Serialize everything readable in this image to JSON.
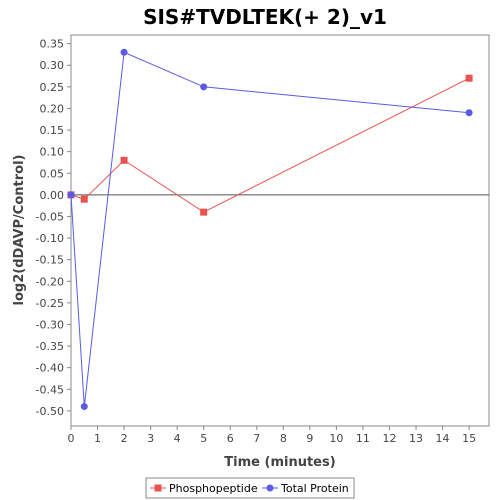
{
  "chart_data": {
    "type": "line",
    "title": "SIS#TVDLTEK(+ 2)_v1",
    "xlabel": "Time (minutes)",
    "ylabel": "log2(dDAVP/Control)",
    "xlim": [
      0,
      15.75
    ],
    "ylim": [
      -0.535,
      0.37
    ],
    "x_ticks": [
      0,
      1,
      2,
      3,
      4,
      5,
      6,
      7,
      8,
      9,
      10,
      11,
      12,
      13,
      14,
      15
    ],
    "y_ticks": [
      0.35,
      0.3,
      0.25,
      0.2,
      0.15,
      0.1,
      0.05,
      0.0,
      -0.05,
      -0.1,
      -0.15,
      -0.2,
      -0.25,
      -0.3,
      -0.35,
      -0.4,
      -0.45,
      -0.5
    ],
    "y_tick_labels": [
      "0.35",
      "0.30",
      "0.25",
      "0.20",
      "0.15",
      "0.10",
      "0.05",
      "0.00",
      "-0.05",
      "-0.10",
      "-0.15",
      "-0.20",
      "-0.25",
      "-0.30",
      "-0.35",
      "-0.40",
      "-0.45",
      "-0.50"
    ],
    "grid": false,
    "zero_line": true,
    "legend_position": "bottom",
    "series": [
      {
        "name": "Phosphopeptide",
        "color": "#e8534f",
        "marker": "square",
        "x": [
          0,
          0.5,
          2,
          5,
          15
        ],
        "y": [
          0.0,
          -0.01,
          0.08,
          -0.04,
          0.27
        ]
      },
      {
        "name": "Total Protein",
        "color": "#5a5ae6",
        "marker": "circle",
        "x": [
          0,
          0.5,
          2,
          5,
          15
        ],
        "y": [
          0.0,
          -0.49,
          0.33,
          0.25,
          0.19
        ]
      }
    ]
  }
}
